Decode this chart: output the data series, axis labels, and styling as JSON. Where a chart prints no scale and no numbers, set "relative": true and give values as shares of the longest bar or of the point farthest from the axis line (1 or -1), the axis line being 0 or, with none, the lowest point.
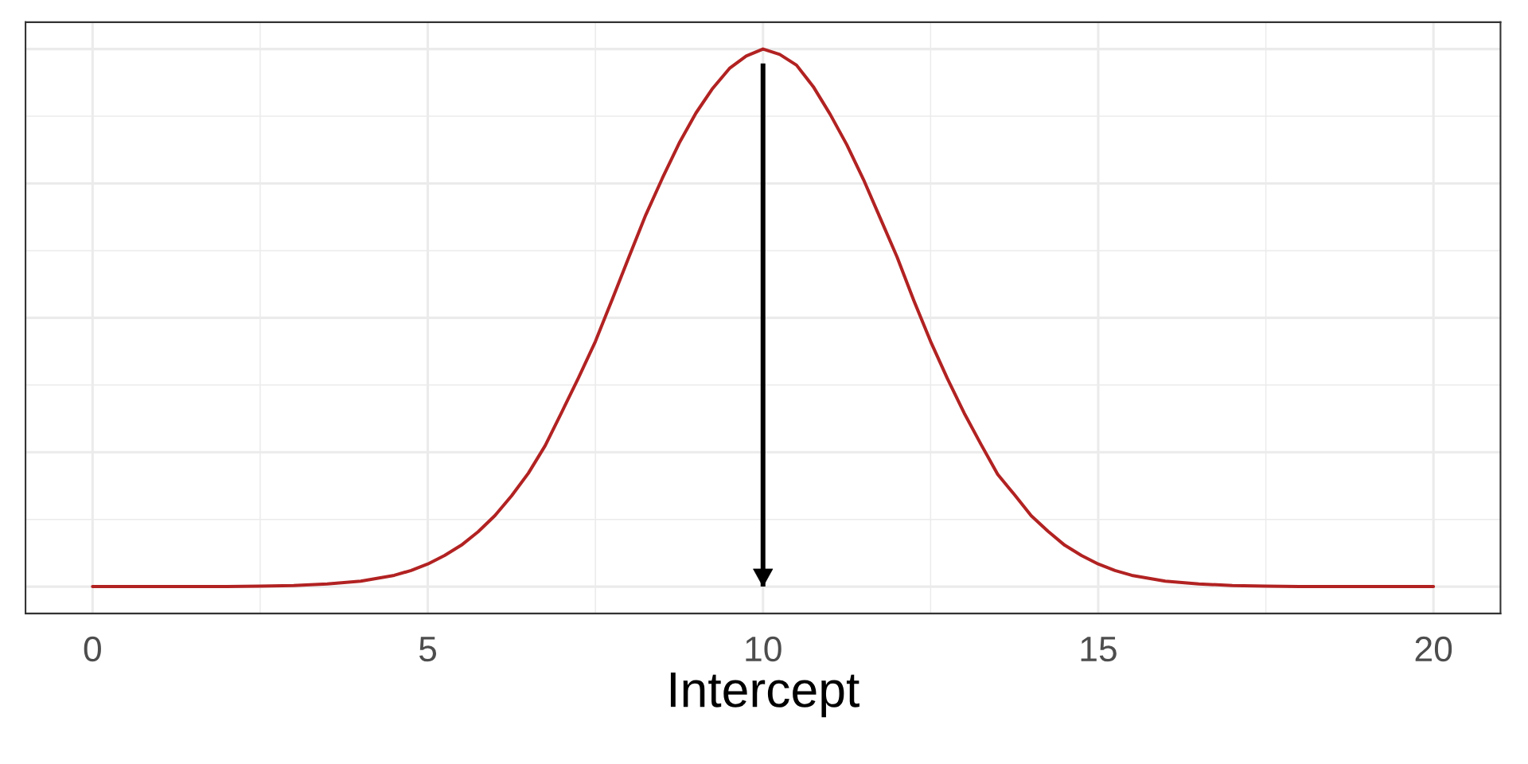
{
  "chart_data": {
    "type": "line",
    "xlabel": "Intercept",
    "relative": true,
    "x": [
      0,
      0.5,
      1,
      1.5,
      2,
      2.5,
      3,
      3.5,
      4,
      4.5,
      4.75,
      5,
      5.25,
      5.5,
      5.75,
      6,
      6.25,
      6.5,
      6.75,
      7,
      7.25,
      7.5,
      7.75,
      8,
      8.25,
      8.5,
      8.75,
      9,
      9.25,
      9.5,
      9.75,
      10,
      10.25,
      10.5,
      10.75,
      11,
      11.25,
      11.5,
      11.75,
      12,
      12.25,
      12.5,
      12.75,
      13,
      13.25,
      13.5,
      13.75,
      14,
      14.25,
      14.5,
      14.75,
      15,
      15.25,
      15.5,
      16,
      16.5,
      17,
      17.5,
      18,
      18.5,
      19,
      19.5,
      20
    ],
    "series": [
      {
        "color": "#b22222",
        "values": [
          0,
          0,
          0,
          0,
          0,
          0.001,
          0.002,
          0.005,
          0.01,
          0.021,
          0.03,
          0.042,
          0.058,
          0.077,
          0.102,
          0.132,
          0.169,
          0.211,
          0.262,
          0.325,
          0.389,
          0.456,
          0.534,
          0.613,
          0.691,
          0.76,
          0.825,
          0.881,
          0.927,
          0.964,
          0.987,
          1,
          0.99,
          0.97,
          0.93,
          0.879,
          0.822,
          0.757,
          0.685,
          0.613,
          0.532,
          0.456,
          0.387,
          0.323,
          0.265,
          0.209,
          0.171,
          0.132,
          0.103,
          0.077,
          0.058,
          0.042,
          0.03,
          0.021,
          0.01,
          0.005,
          0.002,
          0.001,
          0,
          0,
          0,
          0,
          0
        ]
      }
    ],
    "xlim": [
      -1,
      21
    ],
    "xticks": [
      0,
      5,
      10,
      15,
      20
    ],
    "ref_lines": [
      {
        "axis": "x",
        "value": 10,
        "color": "#000000"
      }
    ],
    "grid": true,
    "tick_labels": "x"
  }
}
